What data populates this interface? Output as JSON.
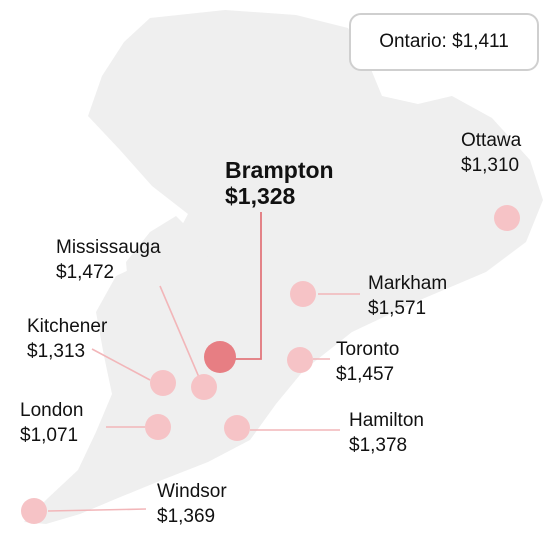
{
  "province": {
    "label": "Ontario:",
    "value": "$1,411"
  },
  "colors": {
    "land": "#efefef",
    "marker": "#f6c3c6",
    "marker_highlight": "#e77e83",
    "leader": "#f2b6b9",
    "leader_highlight": "#e2777c"
  },
  "cities": {
    "brampton": {
      "name": "Brampton",
      "value": "$1,328",
      "highlighted": true
    },
    "ottawa": {
      "name": "Ottawa",
      "value": "$1,310"
    },
    "mississauga": {
      "name": "Mississauga",
      "value": "$1,472"
    },
    "markham": {
      "name": "Markham",
      "value": "$1,571"
    },
    "kitchener": {
      "name": "Kitchener",
      "value": "$1,313"
    },
    "toronto": {
      "name": "Toronto",
      "value": "$1,457"
    },
    "london": {
      "name": "London",
      "value": "$1,071"
    },
    "hamilton": {
      "name": "Hamilton",
      "value": "$1,378"
    },
    "windsor": {
      "name": "Windsor",
      "value": "$1,369"
    }
  }
}
